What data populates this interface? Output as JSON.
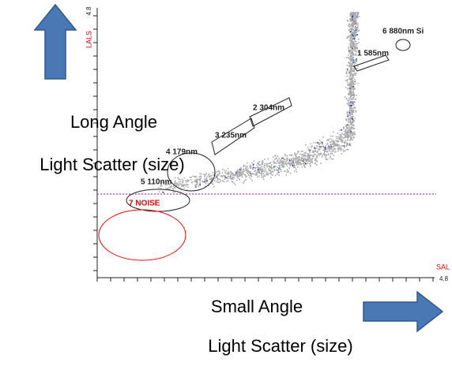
{
  "y_axis": {
    "label": "LALS",
    "max": "4.8"
  },
  "x_axis": {
    "label": "SAL",
    "max": "4.8"
  },
  "y_title": [
    "Long Angle",
    "Light Scatter (size)"
  ],
  "x_title": [
    "Small Angle",
    "Light Scatter (size)"
  ],
  "gates": [
    "6 880nm Si",
    "1 585nm",
    "2 304nm",
    "3 235nm",
    "4 179nm",
    "5 110nm",
    "7 NOISE"
  ]
}
